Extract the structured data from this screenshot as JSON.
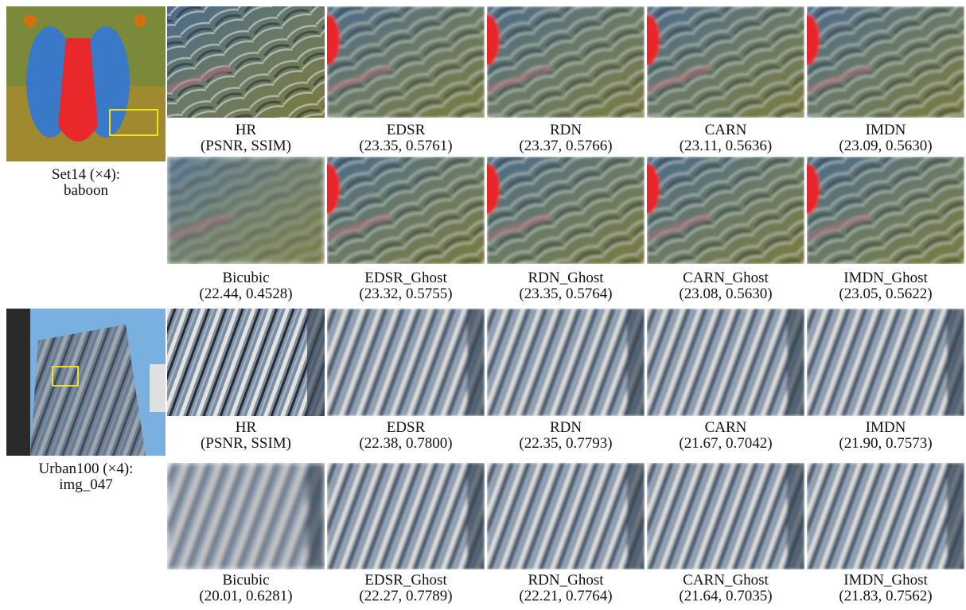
{
  "groups": [
    {
      "source": {
        "label": "Set14 (×4):",
        "name": "baboon"
      },
      "rows": [
        [
          {
            "method": "HR",
            "metrics": "(PSNR, SSIM)"
          },
          {
            "method": "EDSR",
            "metrics": "(23.35, 0.5761)"
          },
          {
            "method": "RDN",
            "metrics": "(23.37, 0.5766)"
          },
          {
            "method": "CARN",
            "metrics": "(23.11, 0.5636)"
          },
          {
            "method": "IMDN",
            "metrics": "(23.09, 0.5630)"
          }
        ],
        [
          {
            "method": "Bicubic",
            "metrics": "(22.44, 0.4528)"
          },
          {
            "method": "EDSR_Ghost",
            "metrics": "(23.32, 0.5755)"
          },
          {
            "method": "RDN_Ghost",
            "metrics": "(23.35, 0.5764)"
          },
          {
            "method": "CARN_Ghost",
            "metrics": "(23.08, 0.5630)"
          },
          {
            "method": "IMDN_Ghost",
            "metrics": "(23.05, 0.5622)"
          }
        ]
      ]
    },
    {
      "source": {
        "label": "Urban100 (×4):",
        "name": "img_047"
      },
      "rows": [
        [
          {
            "method": "HR",
            "metrics": "(PSNR, SSIM)"
          },
          {
            "method": "EDSR",
            "metrics": "(22.38, 0.7800)"
          },
          {
            "method": "RDN",
            "metrics": "(22.35, 0.7793)"
          },
          {
            "method": "CARN",
            "metrics": "(21.67, 0.7042)"
          },
          {
            "method": "IMDN",
            "metrics": "(21.90, 0.7573)"
          }
        ],
        [
          {
            "method": "Bicubic",
            "metrics": "(20.01, 0.6281)"
          },
          {
            "method": "EDSR_Ghost",
            "metrics": "(22.27, 0.7789)"
          },
          {
            "method": "RDN_Ghost",
            "metrics": "(22.21, 0.7764)"
          },
          {
            "method": "CARN_Ghost",
            "metrics": "(21.64, 0.7035)"
          },
          {
            "method": "IMDN_Ghost",
            "metrics": "(21.83, 0.7562)"
          }
        ]
      ]
    }
  ]
}
